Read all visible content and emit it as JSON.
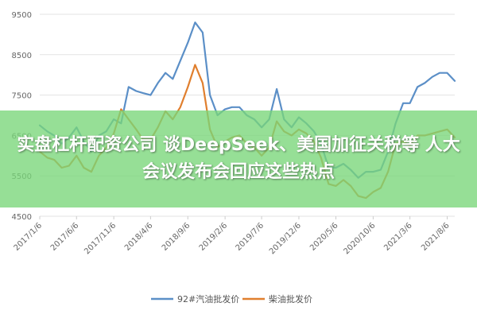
{
  "headline": "实盘杠杆配资公司  谈DeepSeek、美国加征关税等 人大会议发布会回应这些热点",
  "colors": {
    "series1": "#5b8fc7",
    "series2": "#e07f2e",
    "grid": "#e3e3e3",
    "banner": "#78d678"
  },
  "chart_data": {
    "type": "line",
    "title": "",
    "xlabel": "",
    "ylabel": "",
    "ylim": [
      4500,
      9500
    ],
    "yticks": [
      4500,
      5500,
      6500,
      7500,
      8500,
      9500
    ],
    "xticks": [
      "2017/1/6",
      "2017/6/6",
      "2017/11/6",
      "2018/4/6",
      "2018/9/6",
      "2019/2/6",
      "2019/7/6",
      "2019/12/6",
      "2020/5/6",
      "2020/10/6",
      "2021/3/6",
      "2021/8/6"
    ],
    "legend_position": "bottom",
    "grid": true,
    "series": [
      {
        "name": "92#汽油批发价",
        "x": [
          "2017/1/6",
          "2017/2/6",
          "2017/3/6",
          "2017/4/6",
          "2017/5/6",
          "2017/6/6",
          "2017/7/6",
          "2017/8/6",
          "2017/9/6",
          "2017/10/6",
          "2017/11/6",
          "2017/12/6",
          "2018/1/6",
          "2018/2/6",
          "2018/3/6",
          "2018/4/6",
          "2018/5/6",
          "2018/6/6",
          "2018/7/6",
          "2018/8/6",
          "2018/9/6",
          "2018/10/6",
          "2018/11/6",
          "2018/12/6",
          "2019/1/6",
          "2019/2/6",
          "2019/3/6",
          "2019/4/6",
          "2019/5/6",
          "2019/6/6",
          "2019/7/6",
          "2019/8/6",
          "2019/9/6",
          "2019/10/6",
          "2019/11/6",
          "2019/12/6",
          "2020/1/6",
          "2020/2/6",
          "2020/3/6",
          "2020/4/6",
          "2020/5/6",
          "2020/6/6",
          "2020/7/6",
          "2020/8/6",
          "2020/9/6",
          "2020/10/6",
          "2020/11/6",
          "2020/12/6",
          "2021/1/6",
          "2021/2/6",
          "2021/3/6",
          "2021/4/6",
          "2021/5/6",
          "2021/6/6",
          "2021/7/6",
          "2021/8/6",
          "2021/9/6"
        ],
        "values": [
          6750,
          6600,
          6500,
          6300,
          6450,
          6700,
          6350,
          6100,
          6500,
          6600,
          6900,
          6800,
          7700,
          7600,
          7550,
          7500,
          7800,
          8050,
          7900,
          8350,
          8800,
          9300,
          9050,
          7500,
          7000,
          7150,
          7200,
          7200,
          7000,
          6900,
          6700,
          6900,
          7650,
          6900,
          6700,
          6950,
          6800,
          6600,
          6300,
          5700,
          5700,
          5800,
          5650,
          5450,
          5600,
          5600,
          5650,
          6100,
          6800,
          7300,
          7300,
          7700,
          7800,
          7950,
          8050,
          8050,
          7850
        ]
      },
      {
        "name": "柴油批发价",
        "x": [
          "2017/1/6",
          "2017/2/6",
          "2017/3/6",
          "2017/4/6",
          "2017/5/6",
          "2017/6/6",
          "2017/7/6",
          "2017/8/6",
          "2017/9/6",
          "2017/10/6",
          "2017/11/6",
          "2017/12/6",
          "2018/1/6",
          "2018/2/6",
          "2018/3/6",
          "2018/4/6",
          "2018/5/6",
          "2018/6/6",
          "2018/7/6",
          "2018/8/6",
          "2018/9/6",
          "2018/10/6",
          "2018/11/6",
          "2018/12/6",
          "2019/1/6",
          "2019/2/6",
          "2019/3/6",
          "2019/4/6",
          "2019/5/6",
          "2019/6/6",
          "2019/7/6",
          "2019/8/6",
          "2019/9/6",
          "2019/10/6",
          "2019/11/6",
          "2019/12/6",
          "2020/1/6",
          "2020/2/6",
          "2020/3/6",
          "2020/4/6",
          "2020/5/6",
          "2020/6/6",
          "2020/7/6",
          "2020/8/6",
          "2020/9/6",
          "2020/10/6",
          "2020/11/6",
          "2020/12/6",
          "2021/1/6",
          "2021/2/6",
          "2021/3/6",
          "2021/4/6",
          "2021/5/6",
          "2021/6/6",
          "2021/7/6",
          "2021/8/6",
          "2021/9/6"
        ],
        "values": [
          6100,
          5950,
          5900,
          5700,
          5750,
          6000,
          5700,
          5600,
          6000,
          6200,
          6550,
          7150,
          6900,
          6650,
          6400,
          6400,
          6700,
          7100,
          6900,
          7200,
          7700,
          8250,
          7800,
          6650,
          6200,
          6350,
          6450,
          6500,
          6300,
          6200,
          6000,
          6200,
          6850,
          6600,
          6500,
          6650,
          6550,
          6350,
          5950,
          5300,
          5250,
          5400,
          5250,
          5000,
          4950,
          5100,
          5200,
          5600,
          6300,
          6350,
          6250,
          6500,
          6500,
          6550,
          6600,
          6650,
          6450
        ]
      }
    ]
  }
}
